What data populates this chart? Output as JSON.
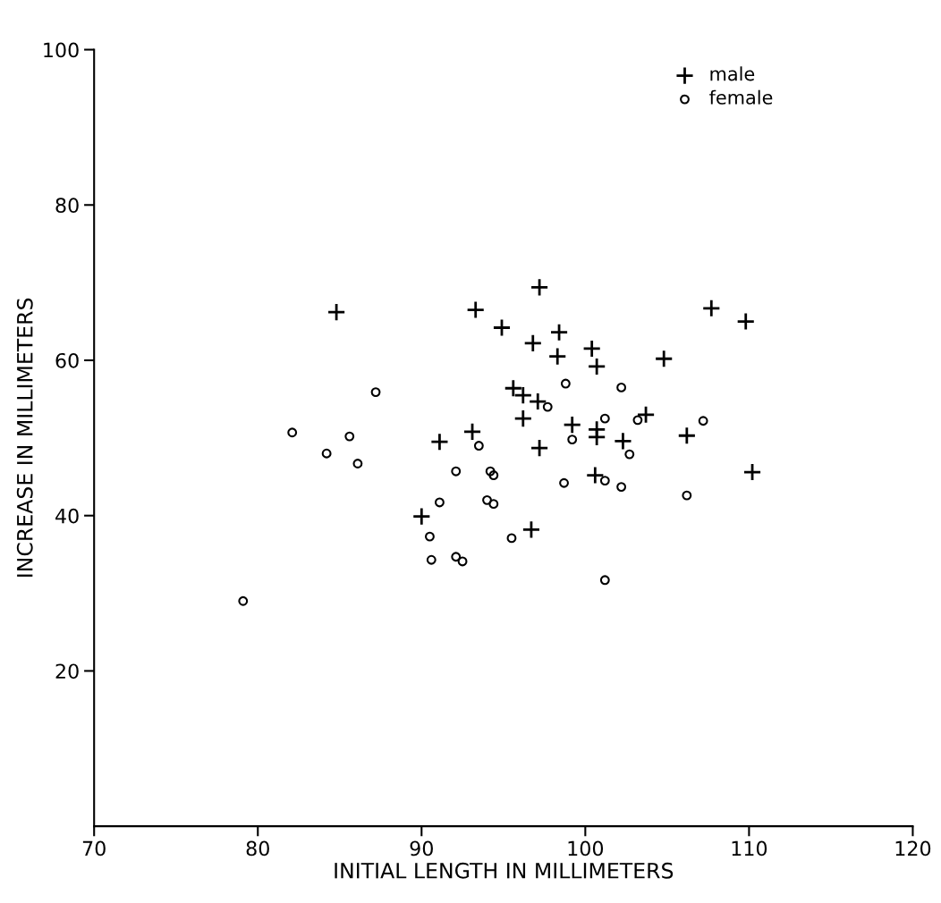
{
  "chart_data": {
    "type": "scatter",
    "xlabel": "INITIAL LENGTH IN MILLIMETERS",
    "ylabel": "INCREASE IN MILLIMETERS",
    "xlim": [
      70,
      120
    ],
    "xticks": [
      70,
      80,
      90,
      100,
      110,
      120
    ],
    "ylim": [
      0,
      100
    ],
    "yticks": [
      20,
      40,
      60,
      80,
      100
    ],
    "grid": false,
    "legend": "top right",
    "series": [
      {
        "name": "male",
        "color": "#000000",
        "marker": "cross",
        "x": [
          97.2,
          107.7,
          109.8,
          94.9,
          98.4,
          96.8,
          98.3,
          100.4,
          100.7,
          104.8,
          95.6,
          96.2,
          97.1,
          96.2,
          103.7,
          99.2,
          100.7,
          100.7,
          102.3,
          106.2,
          97.2,
          100.6,
          110.2,
          96.7,
          84.8,
          93.3,
          91.1,
          93.1,
          90.0
        ],
        "values": [
          69.4,
          66.7,
          65.0,
          64.2,
          63.6,
          62.2,
          60.5,
          61.5,
          59.2,
          60.2,
          56.4,
          55.5,
          54.7,
          52.5,
          53.0,
          51.7,
          51.1,
          50.1,
          49.6,
          50.3,
          48.7,
          45.2,
          45.6,
          38.2,
          66.2,
          66.5,
          49.5,
          50.8,
          39.9
        ]
      },
      {
        "name": "female",
        "color": "#000000",
        "marker": "circle",
        "x": [
          98.8,
          102.2,
          97.7,
          101.2,
          103.2,
          107.2,
          99.2,
          102.7,
          98.7,
          101.2,
          102.2,
          106.2,
          95.5,
          101.2,
          87.2,
          82.1,
          85.6,
          84.2,
          86.1,
          93.5,
          92.1,
          94.2,
          94.4,
          91.1,
          94.0,
          94.4,
          90.5,
          90.6,
          92.1,
          92.5,
          79.1
        ],
        "values": [
          57.0,
          56.5,
          54.0,
          52.5,
          52.3,
          52.2,
          49.8,
          47.9,
          44.2,
          44.5,
          43.7,
          42.6,
          37.1,
          31.7,
          55.9,
          50.7,
          50.2,
          48.0,
          46.7,
          49.0,
          45.7,
          45.7,
          45.2,
          41.7,
          42.0,
          41.5,
          37.3,
          34.3,
          34.7,
          34.1,
          29.0
        ]
      }
    ]
  }
}
